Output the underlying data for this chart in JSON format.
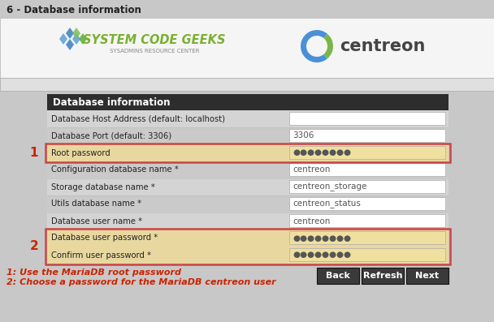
{
  "title": "6 - Database information",
  "bg_color": "#c8c8c8",
  "header_bg": "#f5f5f5",
  "section_header_bg": "#2d2d2d",
  "section_header_text": "Database information",
  "section_header_color": "#ffffff",
  "fields": [
    {
      "label": "Database Host Address (default: localhost)",
      "value": "",
      "highlight": false,
      "group": 0
    },
    {
      "label": "Database Port (default: 3306)",
      "value": "3306",
      "highlight": false,
      "group": 0
    },
    {
      "label": "Root password",
      "value": "●●●●●●●●",
      "highlight": true,
      "group": 1
    },
    {
      "label": "Configuration database name *",
      "value": "centreon",
      "highlight": false,
      "group": 0
    },
    {
      "label": "Storage database name *",
      "value": "centreon_storage",
      "highlight": false,
      "group": 0
    },
    {
      "label": "Utils database name *",
      "value": "centreon_status",
      "highlight": false,
      "group": 0
    },
    {
      "label": "Database user name *",
      "value": "centreon",
      "highlight": false,
      "group": 0
    },
    {
      "label": "Database user password *",
      "value": "●●●●●●●●",
      "highlight": true,
      "group": 2
    },
    {
      "label": "Confirm user password *",
      "value": "●●●●●●●●",
      "highlight": true,
      "group": 2
    }
  ],
  "note1": "1: Use the MariaDB root password",
  "note2": "2: Choose a password for the MariaDB centreon user",
  "note_color": "#cc2200",
  "buttons": [
    "Back",
    "Refresh",
    "Next"
  ],
  "button_bg": "#3a3a3a",
  "button_text_color": "#ffffff",
  "highlight_box_color": "#e8d8a0",
  "highlight_border_color": "#cc4444",
  "label_number_color": "#cc2200",
  "field_bg": "#ffffff",
  "input_bg_highlight": "#f0e0a0",
  "separator_color": "#aaaaaa",
  "row_bg_even": "#d4d4d4",
  "row_bg_odd": "#cacaca"
}
